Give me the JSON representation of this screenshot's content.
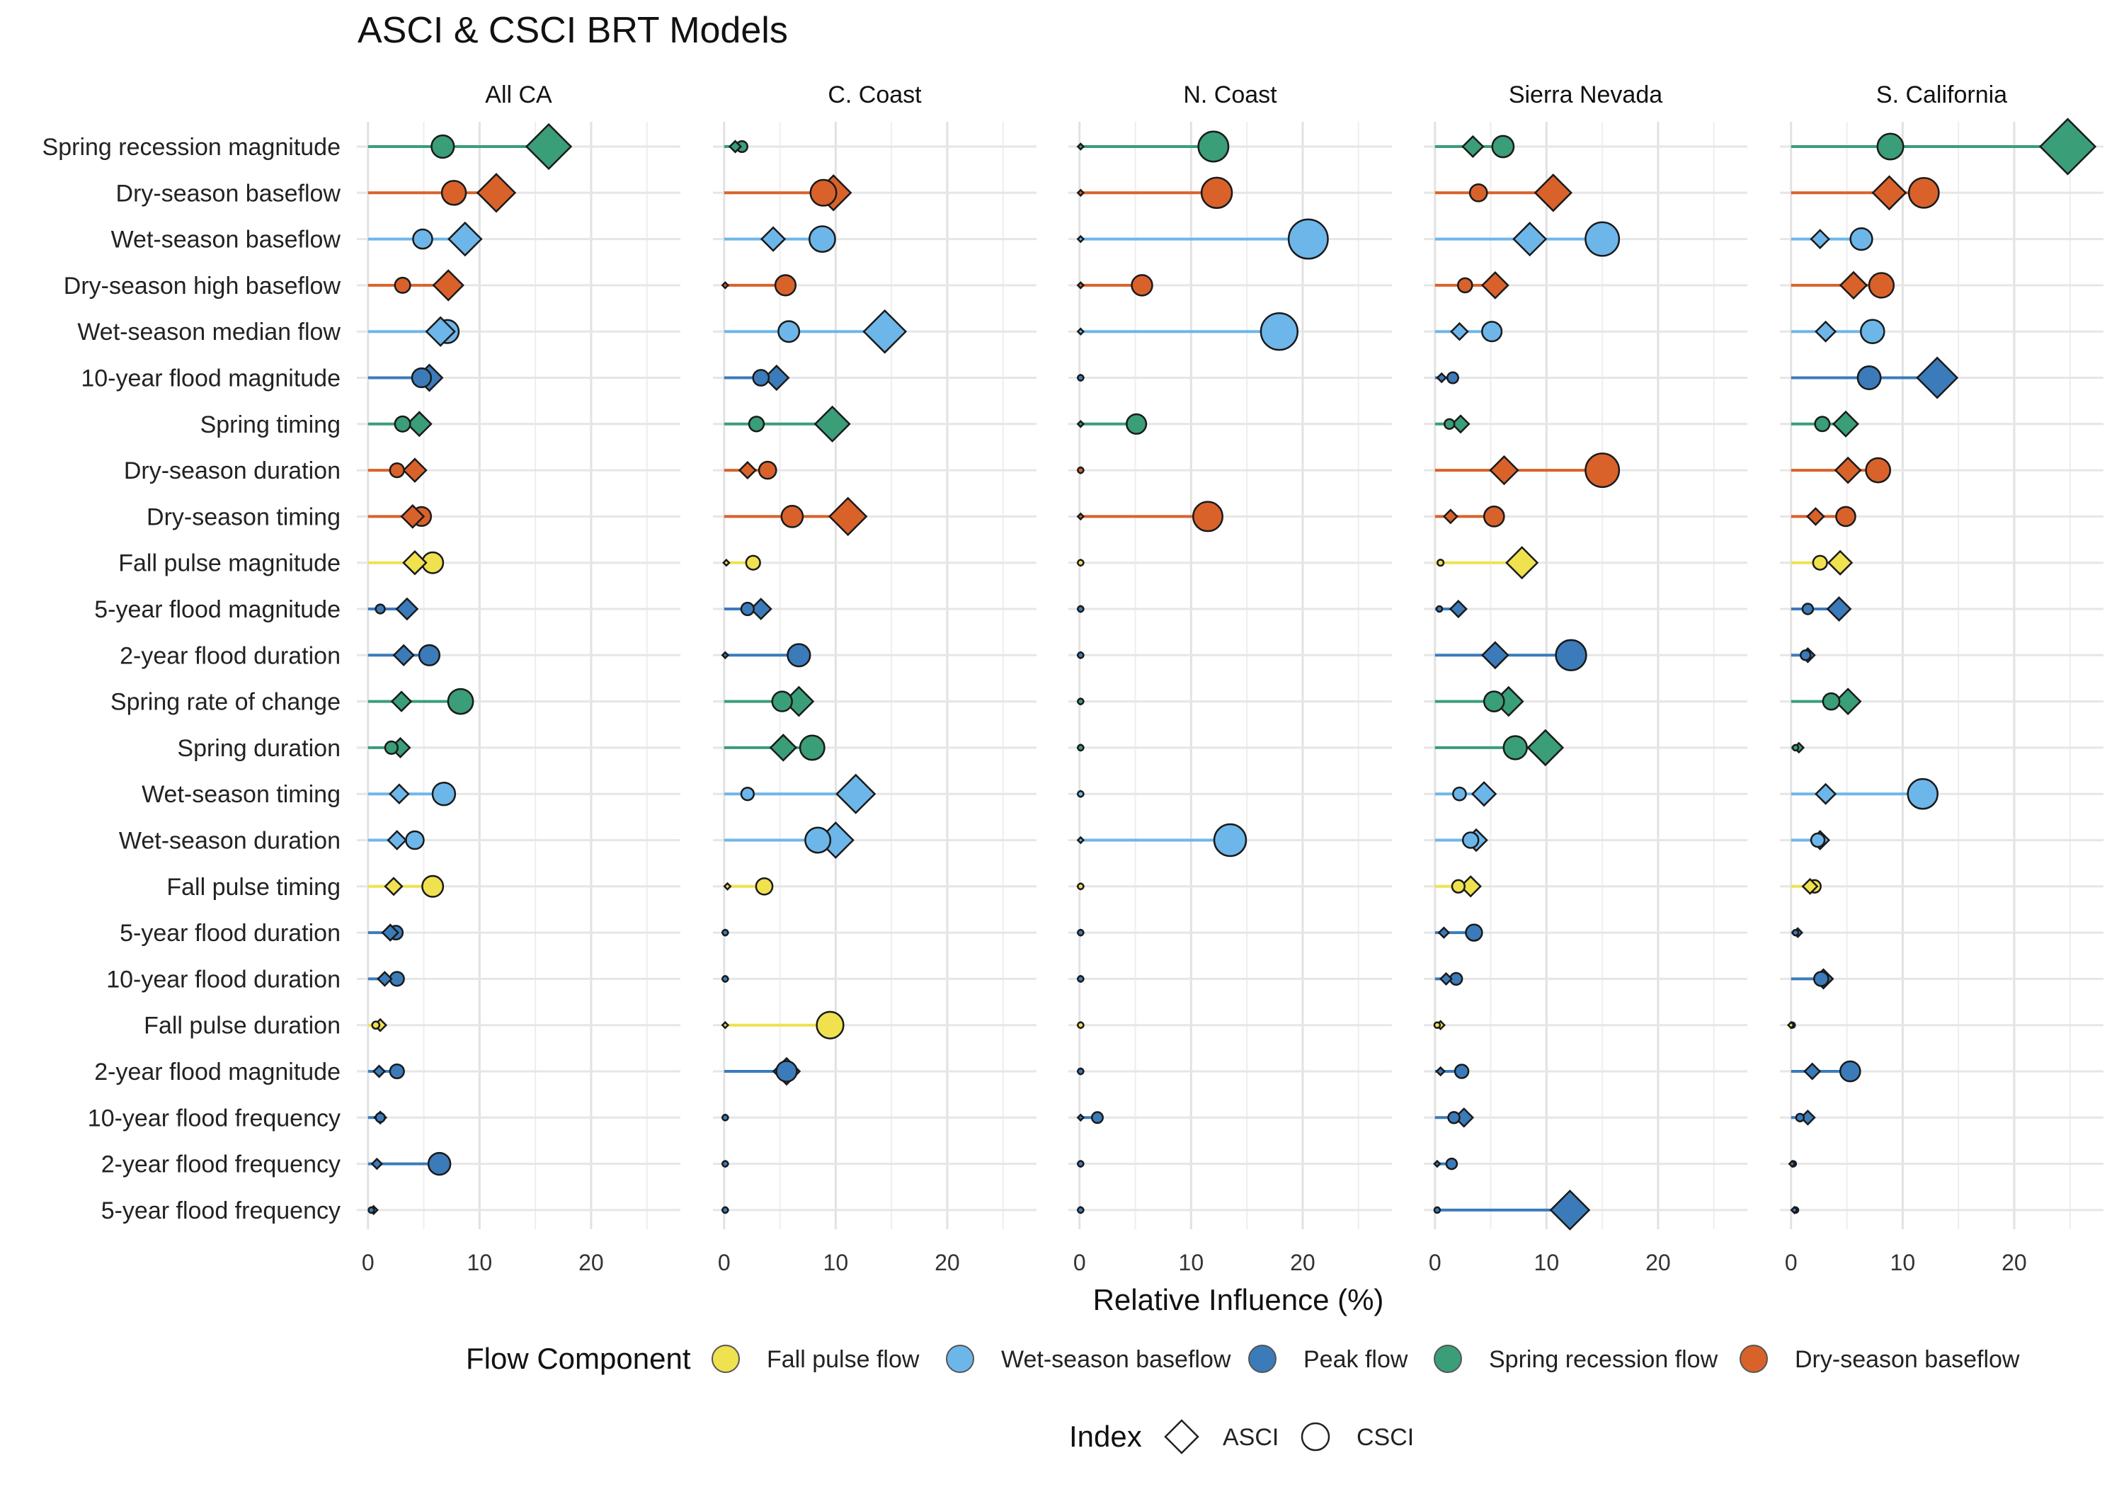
{
  "chart_data": {
    "type": "scatter",
    "subtype": "lollipop-dot-plot",
    "title": "ASCI & CSCI BRT Models",
    "xlabel": "Relative Influence (%)",
    "xlim": [
      -1,
      28
    ],
    "xticks": [
      0,
      10,
      20
    ],
    "grid": true,
    "panels": [
      "All CA",
      "C. Coast",
      "N. Coast",
      "Sierra Nevada",
      "S. California"
    ],
    "metrics": [
      {
        "name": "Spring recession magnitude",
        "component": "Spring recession flow"
      },
      {
        "name": "Dry-season baseflow",
        "component": "Dry-season baseflow"
      },
      {
        "name": "Wet-season baseflow",
        "component": "Wet-season baseflow"
      },
      {
        "name": "Dry-season high baseflow",
        "component": "Dry-season baseflow"
      },
      {
        "name": "Wet-season median flow",
        "component": "Wet-season baseflow"
      },
      {
        "name": "10-year flood magnitude",
        "component": "Peak flow"
      },
      {
        "name": "Spring timing",
        "component": "Spring recession flow"
      },
      {
        "name": "Dry-season duration",
        "component": "Dry-season baseflow"
      },
      {
        "name": "Dry-season timing",
        "component": "Dry-season baseflow"
      },
      {
        "name": "Fall pulse magnitude",
        "component": "Fall pulse flow"
      },
      {
        "name": "5-year flood magnitude",
        "component": "Peak flow"
      },
      {
        "name": "2-year flood duration",
        "component": "Peak flow"
      },
      {
        "name": "Spring rate of change",
        "component": "Spring recession flow"
      },
      {
        "name": "Spring duration",
        "component": "Spring recession flow"
      },
      {
        "name": "Wet-season timing",
        "component": "Wet-season baseflow"
      },
      {
        "name": "Wet-season duration",
        "component": "Wet-season baseflow"
      },
      {
        "name": "Fall pulse timing",
        "component": "Fall pulse flow"
      },
      {
        "name": "5-year flood duration",
        "component": "Peak flow"
      },
      {
        "name": "10-year flood duration",
        "component": "Peak flow"
      },
      {
        "name": "Fall pulse duration",
        "component": "Fall pulse flow"
      },
      {
        "name": "2-year flood magnitude",
        "component": "Peak flow"
      },
      {
        "name": "10-year flood frequency",
        "component": "Peak flow"
      },
      {
        "name": "2-year flood frequency",
        "component": "Peak flow"
      },
      {
        "name": "5-year flood frequency",
        "component": "Peak flow"
      }
    ],
    "values": {
      "All CA": {
        "ASCI": [
          16.2,
          11.5,
          8.7,
          7.2,
          6.5,
          5.5,
          4.6,
          4.2,
          4.0,
          4.2,
          3.5,
          3.2,
          3.0,
          2.9,
          2.8,
          2.6,
          2.3,
          2.0,
          1.5,
          1.1,
          1.0,
          1.1,
          0.8,
          0.5
        ],
        "CSCI": [
          6.7,
          7.7,
          4.9,
          3.1,
          7.1,
          4.8,
          3.1,
          2.6,
          4.8,
          5.8,
          1.1,
          5.5,
          8.3,
          2.1,
          6.8,
          4.2,
          5.8,
          2.5,
          2.6,
          0.7,
          2.6,
          1.1,
          6.4,
          0.3
        ]
      },
      "C. Coast": {
        "ASCI": [
          1.0,
          9.8,
          4.4,
          0.1,
          14.4,
          4.7,
          9.7,
          2.1,
          11.1,
          0.2,
          3.3,
          0.1,
          6.7,
          5.3,
          11.8,
          10.0,
          0.3,
          0.1,
          0.1,
          0.1,
          5.6,
          0.1,
          0.1,
          0.1
        ],
        "CSCI": [
          1.6,
          8.9,
          8.8,
          5.5,
          5.8,
          3.3,
          2.9,
          3.9,
          6.1,
          2.6,
          2.1,
          6.7,
          5.2,
          7.9,
          2.1,
          8.4,
          3.6,
          0.1,
          0.1,
          9.5,
          5.6,
          0.1,
          0.1,
          0.1
        ]
      },
      "N. Coast": {
        "ASCI": [
          0.1,
          0.1,
          0.1,
          0.1,
          0.1,
          0.1,
          0.1,
          0.1,
          0.1,
          0.1,
          0.1,
          0.1,
          0.1,
          0.1,
          0.1,
          0.1,
          0.1,
          0.1,
          0.1,
          0.1,
          0.1,
          0.1,
          0.1,
          0.1
        ],
        "CSCI": [
          12.0,
          12.3,
          20.5,
          5.6,
          17.9,
          0.1,
          5.1,
          0.1,
          11.5,
          0.1,
          0.1,
          0.1,
          0.1,
          0.1,
          0.1,
          13.5,
          0.1,
          0.1,
          0.1,
          0.1,
          0.1,
          1.6,
          0.1,
          0.1
        ]
      },
      "Sierra Nevada": {
        "ASCI": [
          3.4,
          10.6,
          8.5,
          5.4,
          2.2,
          0.6,
          2.3,
          6.2,
          1.4,
          7.8,
          2.1,
          5.4,
          6.6,
          9.9,
          4.4,
          3.7,
          3.2,
          0.8,
          1.0,
          0.5,
          0.5,
          2.6,
          0.2,
          12.1
        ],
        "CSCI": [
          6.1,
          3.9,
          15.0,
          2.7,
          5.1,
          1.6,
          1.3,
          15.0,
          5.3,
          0.5,
          0.4,
          12.2,
          5.3,
          7.2,
          2.2,
          3.2,
          2.1,
          3.5,
          1.9,
          0.2,
          2.4,
          1.7,
          1.5,
          0.2
        ]
      },
      "S. California": {
        "ASCI": [
          24.8,
          8.8,
          2.6,
          5.6,
          3.1,
          13.1,
          4.9,
          5.1,
          2.2,
          4.4,
          4.3,
          1.5,
          5.1,
          0.7,
          3.1,
          2.6,
          1.7,
          0.6,
          2.9,
          0.0,
          1.9,
          1.5,
          0.1,
          0.3
        ],
        "CSCI": [
          8.9,
          11.9,
          6.3,
          8.1,
          7.3,
          7.0,
          2.8,
          7.8,
          4.9,
          2.6,
          1.5,
          1.3,
          3.6,
          0.4,
          11.8,
          2.4,
          2.1,
          0.4,
          2.7,
          0.1,
          5.3,
          0.8,
          0.2,
          0.4
        ]
      }
    },
    "legend": {
      "placement": "bottom",
      "component_title": "Flow Component",
      "components": [
        {
          "name": "Fall pulse flow",
          "color": "#f0e14f"
        },
        {
          "name": "Wet-season baseflow",
          "color": "#6db6ea"
        },
        {
          "name": "Peak flow",
          "color": "#3b7bba"
        },
        {
          "name": "Spring recession flow",
          "color": "#3a9e78"
        },
        {
          "name": "Dry-season baseflow",
          "color": "#d9622b"
        }
      ],
      "index_title": "Index",
      "indices": [
        {
          "name": "ASCI",
          "shape": "diamond"
        },
        {
          "name": "CSCI",
          "shape": "circle"
        }
      ]
    }
  }
}
